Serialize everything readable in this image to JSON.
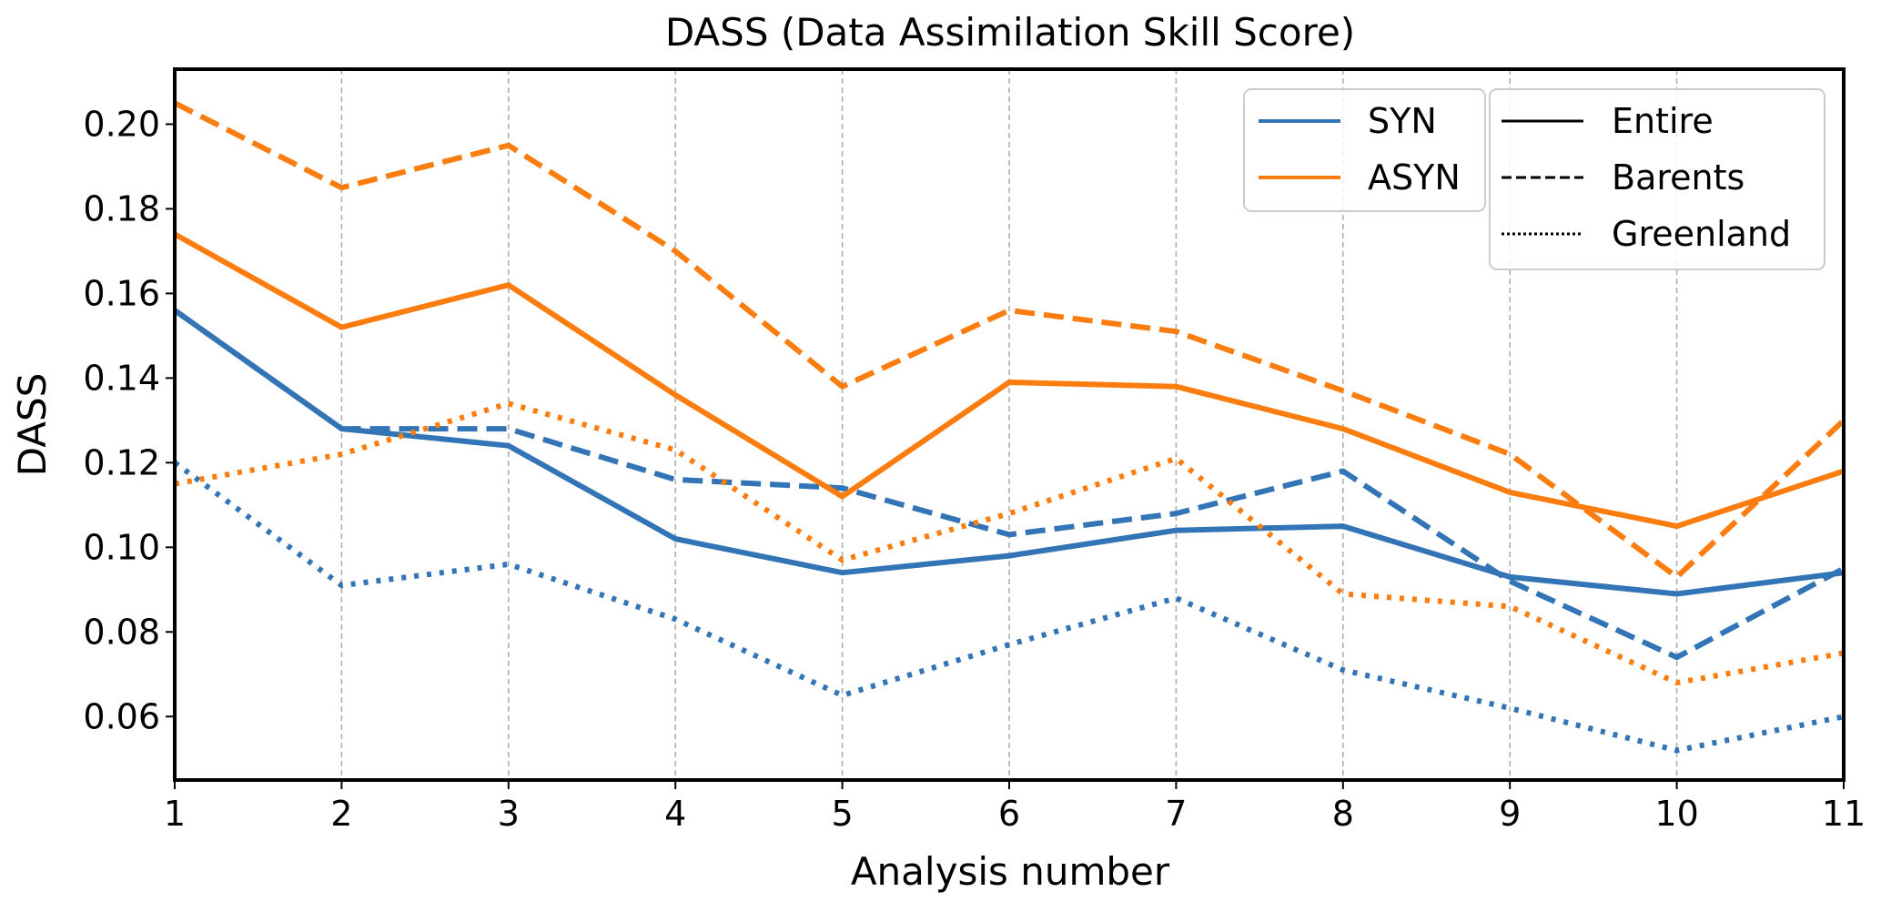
{
  "chart_data": {
    "type": "line",
    "title": "DASS (Data Assimilation Skill Score)",
    "xlabel": "Analysis number",
    "ylabel": "DASS",
    "x": [
      1,
      2,
      3,
      4,
      5,
      6,
      7,
      8,
      9,
      10,
      11
    ],
    "xlim": [
      1,
      11
    ],
    "ylim": [
      0.045,
      0.213
    ],
    "yticks": [
      0.06,
      0.08,
      0.1,
      0.12,
      0.14,
      0.16,
      0.18,
      0.2
    ],
    "ytick_labels": [
      "0.06",
      "0.08",
      "0.10",
      "0.12",
      "0.14",
      "0.16",
      "0.18",
      "0.20"
    ],
    "xtick_labels": [
      "1",
      "2",
      "3",
      "4",
      "5",
      "6",
      "7",
      "8",
      "9",
      "10",
      "11"
    ],
    "vertical_grid": true,
    "colors": {
      "SYN": "#3274b5",
      "ASYN": "#fb7d0f"
    },
    "legend_experiments": [
      {
        "name": "SYN",
        "color": "#3274b5"
      },
      {
        "name": "ASYN",
        "color": "#fb7d0f"
      }
    ],
    "legend_regions": [
      {
        "name": "Entire",
        "style": "solid"
      },
      {
        "name": "Barents",
        "style": "dashed"
      },
      {
        "name": "Greenland",
        "style": "dotted"
      }
    ],
    "legend_placement": "top-right",
    "series": [
      {
        "experiment": "SYN",
        "region": "Entire",
        "style": "solid",
        "color": "#3274b5",
        "values": [
          0.156,
          0.128,
          0.124,
          0.102,
          0.094,
          0.098,
          0.104,
          0.105,
          0.093,
          0.089,
          0.094
        ]
      },
      {
        "experiment": "SYN",
        "region": "Barents",
        "style": "dashed",
        "color": "#3274b5",
        "values": [
          0.156,
          0.128,
          0.128,
          0.116,
          0.114,
          0.103,
          0.108,
          0.118,
          0.092,
          0.074,
          0.095
        ]
      },
      {
        "experiment": "SYN",
        "region": "Greenland",
        "style": "dotted",
        "color": "#3274b5",
        "values": [
          0.12,
          0.091,
          0.096,
          0.083,
          0.065,
          0.077,
          0.088,
          0.071,
          0.062,
          0.052,
          0.06
        ]
      },
      {
        "experiment": "ASYN",
        "region": "Entire",
        "style": "solid",
        "color": "#fb7d0f",
        "values": [
          0.174,
          0.152,
          0.162,
          0.136,
          0.112,
          0.139,
          0.138,
          0.128,
          0.113,
          0.105,
          0.118
        ]
      },
      {
        "experiment": "ASYN",
        "region": "Barents",
        "style": "dashed",
        "color": "#fb7d0f",
        "values": [
          0.205,
          0.185,
          0.195,
          0.17,
          0.138,
          0.156,
          0.151,
          0.137,
          0.122,
          0.093,
          0.13
        ]
      },
      {
        "experiment": "ASYN",
        "region": "Greenland",
        "style": "dotted",
        "color": "#fb7d0f",
        "values": [
          0.115,
          0.122,
          0.134,
          0.123,
          0.097,
          0.108,
          0.121,
          0.089,
          0.086,
          0.068,
          0.075
        ]
      }
    ]
  }
}
